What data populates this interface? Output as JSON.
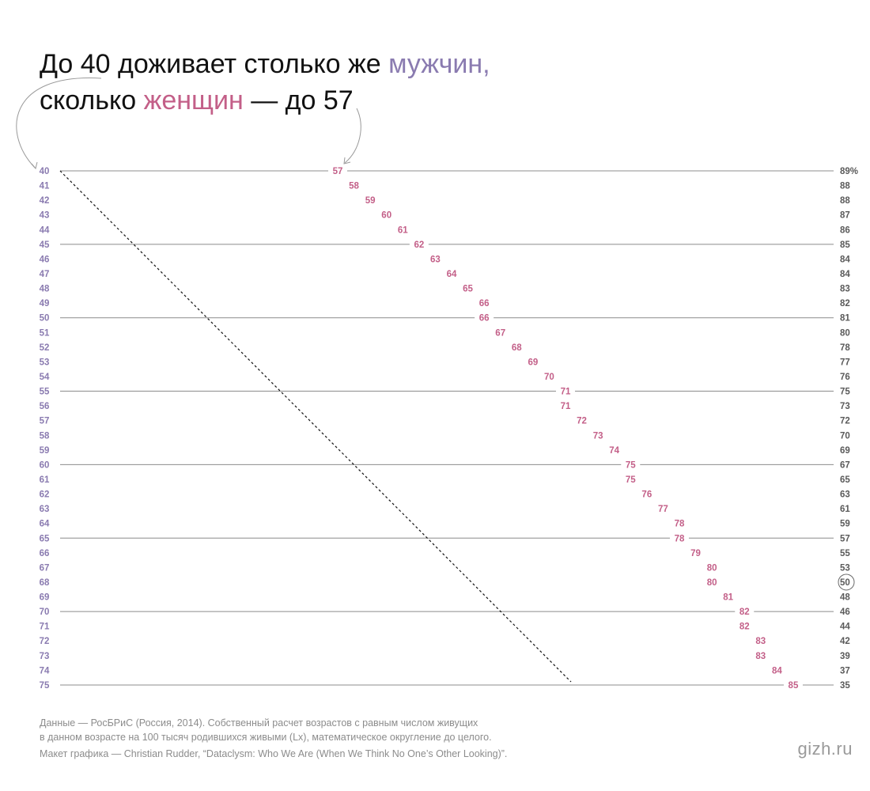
{
  "title": {
    "line1_prefix": "До 40 доживает столько же ",
    "line1_men": "мужчин,",
    "line2_prefix": "сколько ",
    "line2_women": "женщин",
    "line2_suffix": " — до 57"
  },
  "colors": {
    "men": "#8a7bb0",
    "women": "#c35f88",
    "text": "#111111",
    "right_labels": "#5a5a5a",
    "gridline": "#8c8c8c",
    "note": "#8c8c8c"
  },
  "chart_data": {
    "type": "table",
    "description_series": [
      "men_age",
      "women_age_equal_survivors",
      "survivors_percent"
    ],
    "men_age": [
      40,
      41,
      42,
      43,
      44,
      45,
      46,
      47,
      48,
      49,
      50,
      51,
      52,
      53,
      54,
      55,
      56,
      57,
      58,
      59,
      60,
      61,
      62,
      63,
      64,
      65,
      66,
      67,
      68,
      69,
      70,
      71,
      72,
      73,
      74,
      75
    ],
    "women_age": [
      57,
      58,
      59,
      60,
      61,
      62,
      63,
      64,
      65,
      66,
      66,
      67,
      68,
      69,
      70,
      71,
      71,
      72,
      73,
      74,
      75,
      75,
      76,
      77,
      78,
      78,
      79,
      80,
      80,
      81,
      82,
      82,
      83,
      83,
      84,
      85
    ],
    "survivors_percent": [
      89,
      88,
      88,
      87,
      86,
      85,
      84,
      84,
      83,
      82,
      81,
      80,
      78,
      77,
      76,
      75,
      73,
      72,
      70,
      69,
      67,
      65,
      63,
      61,
      59,
      57,
      55,
      53,
      50,
      48,
      46,
      44,
      42,
      39,
      37,
      35
    ],
    "percent_suffix_first": "%",
    "highlighted_percent": 50,
    "gridline_every": 5,
    "diagonal_reference": "dashed line x = y"
  },
  "source_note": {
    "line1": "Данные — РосБРиС (Россия, 2014). Собственный расчет возрастов с равным числом живущих",
    "line2": "в данном возрасте на 100 тысяч родившихся живыми (Lx), математическое округление до целого.",
    "line3": "Макет графика — Christian Rudder, “Dataclysm: Who We Are (When We Think No One’s Other Looking)”."
  },
  "brand": "gizh.ru"
}
